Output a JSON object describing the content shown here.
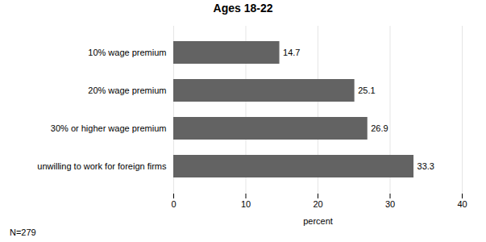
{
  "chart_data": {
    "type": "bar",
    "orientation": "horizontal",
    "title": "Ages 18-22",
    "categories": [
      "unwilling to work for foreign firms",
      "30% or higher wage premium",
      "20% wage premium",
      "10% wage premium"
    ],
    "values": [
      33.3,
      26.9,
      25.1,
      14.7
    ],
    "color": "#636363",
    "xlabel": "percent",
    "xlim": [
      0,
      40
    ],
    "xticks": [
      0,
      10,
      20,
      30,
      40
    ],
    "grid": true,
    "data_labels": true,
    "annotations": [
      "N=279"
    ]
  }
}
